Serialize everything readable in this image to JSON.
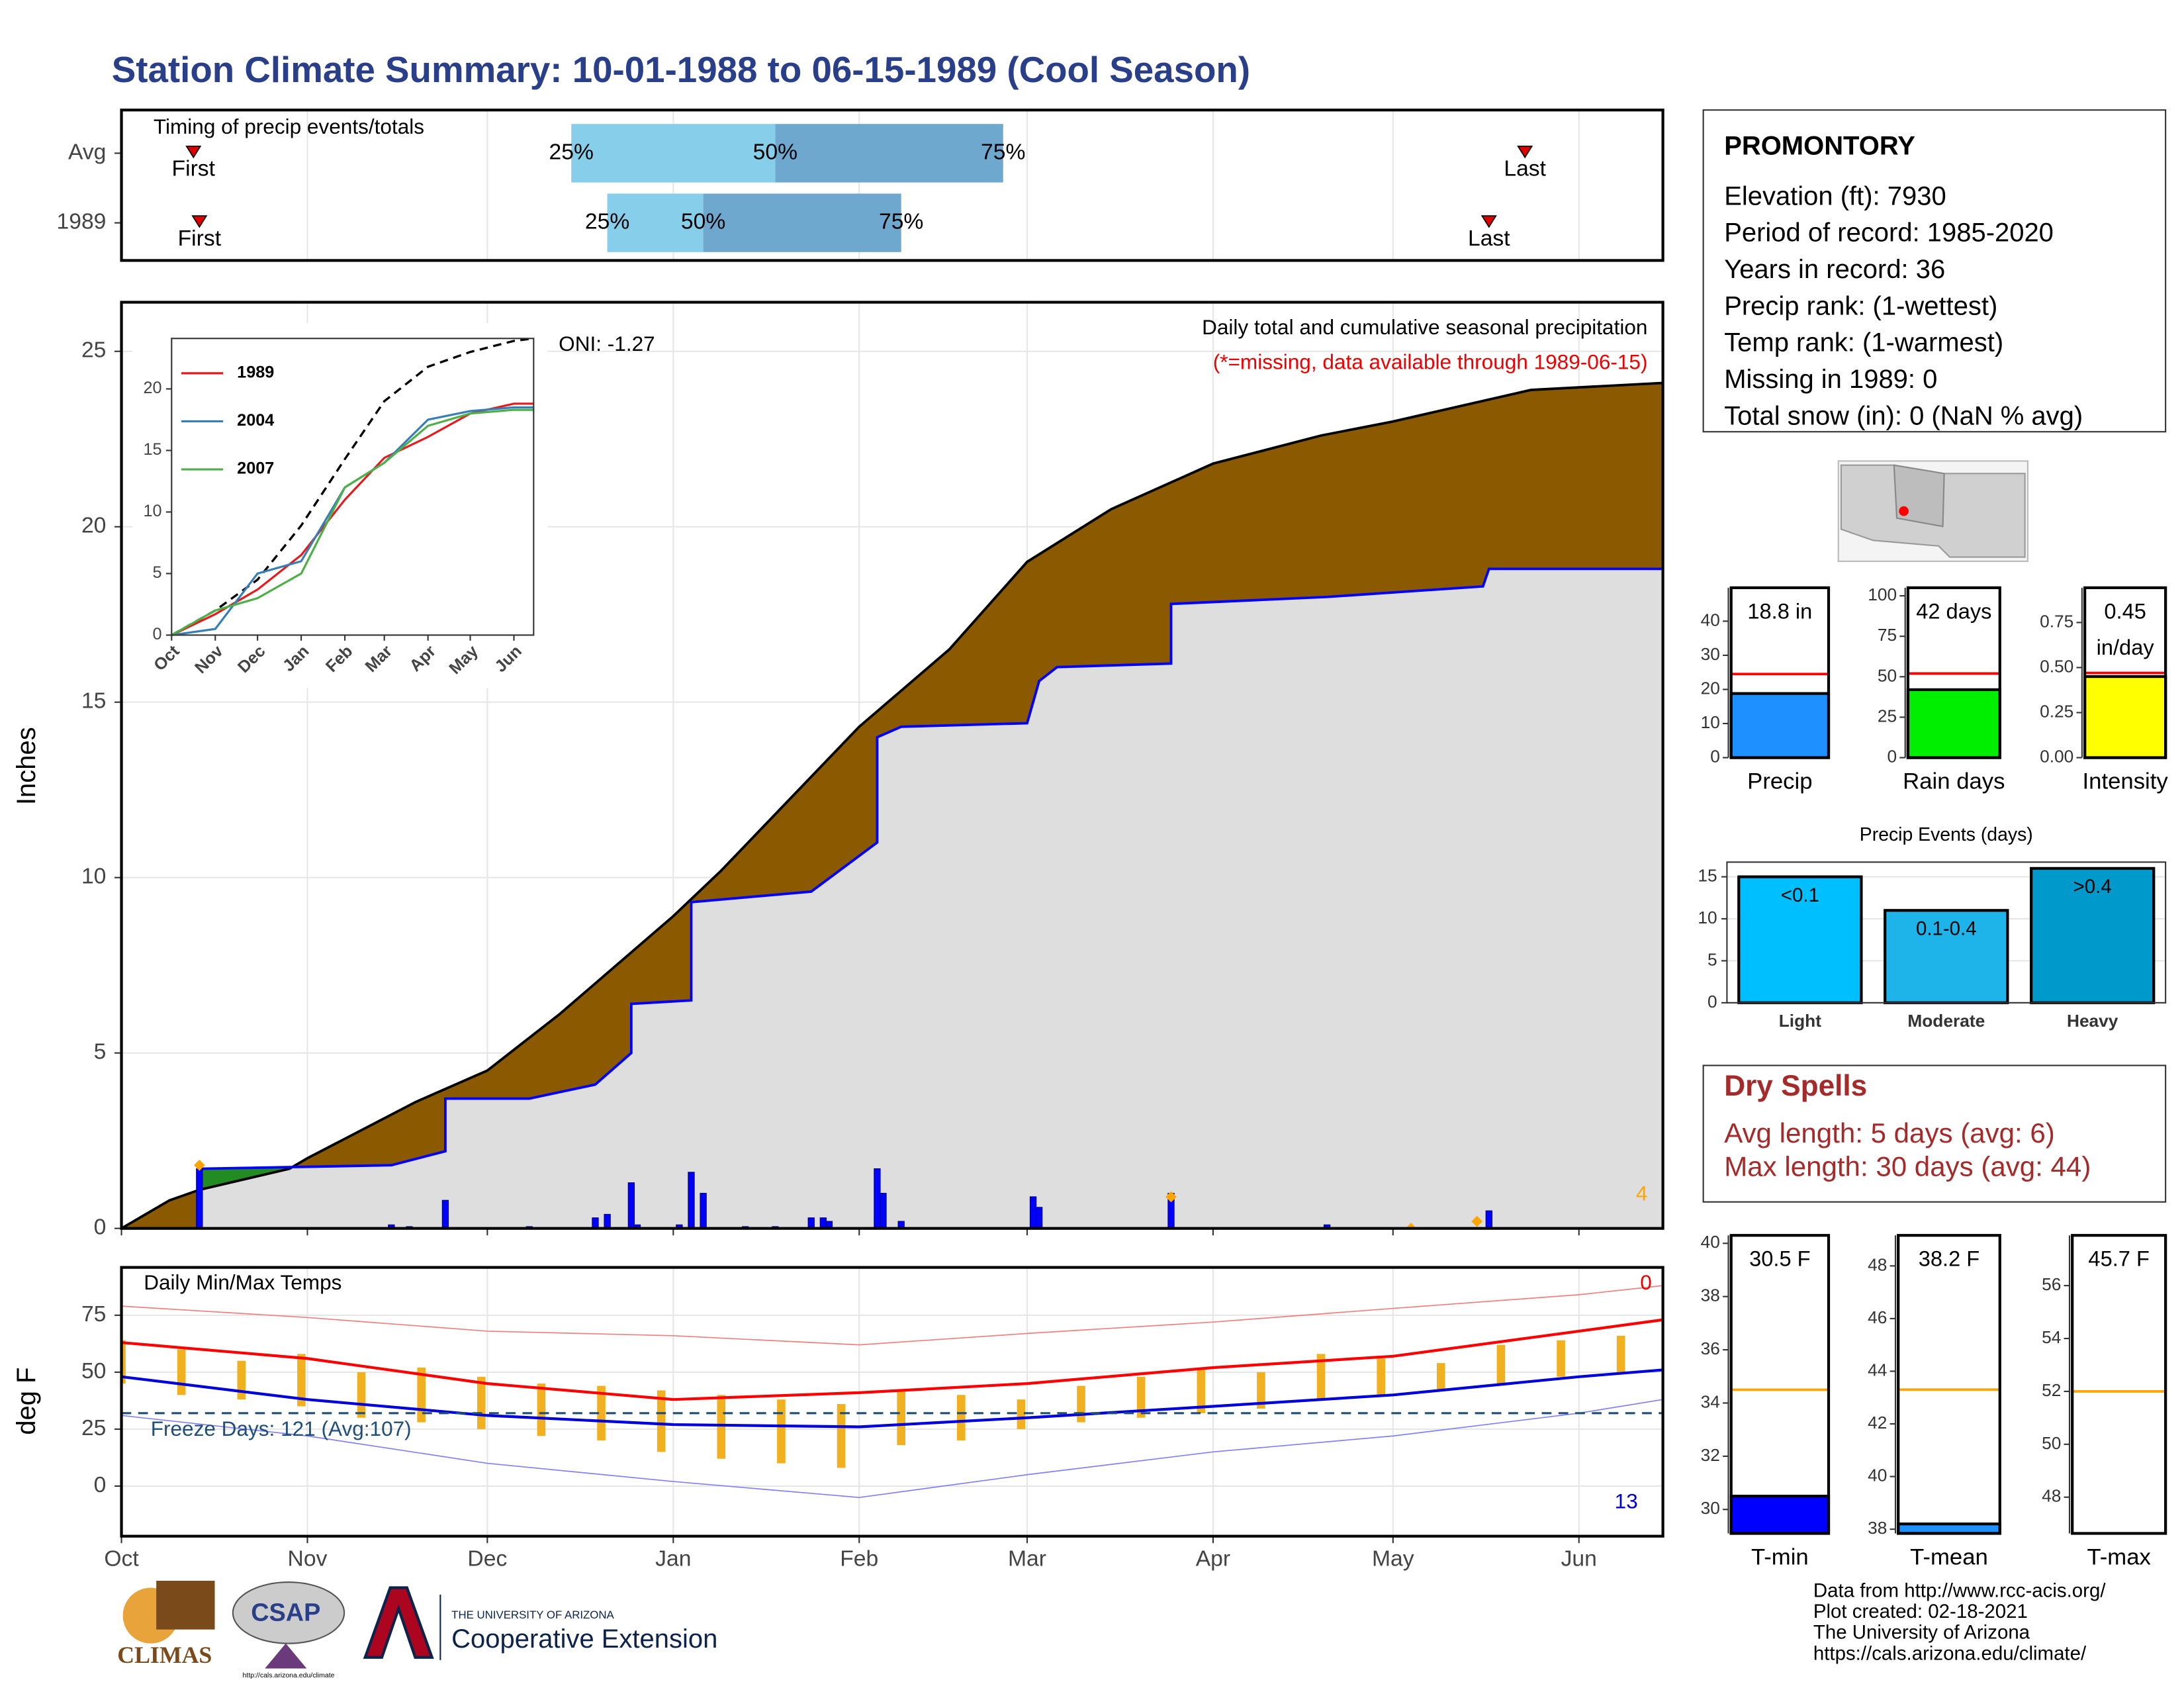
{
  "title": "Station Climate Summary: 10-01-1988 to 06-15-1989 (Cool Season)",
  "station": {
    "name": "PROMONTORY",
    "lines": [
      "Elevation (ft): 7930",
      "Period of record: 1985-2020",
      "Years in record: 36",
      "Precip rank:  (1-wettest)",
      "Temp rank:  (1-warmest)",
      "Missing in 1989: 0",
      "Total snow (in): 0 (NaN % avg)"
    ]
  },
  "dry_spells": {
    "title": "Dry Spells",
    "lines": [
      "Avg length: 5 days (avg: 6)",
      "Max length: 30 days (avg: 44)"
    ]
  },
  "footer": [
    "Data from http://www.rcc-acis.org/",
    "Plot created: 02-18-2021",
    "The University of Arizona",
    "https://cals.arizona.edu/climate/"
  ],
  "logos": {
    "climas": "CLIMAS",
    "csap": "CSAP",
    "csap_url": "http://cals.arizona.edu/climate",
    "university": "THE UNIVERSITY OF ARIZONA",
    "extension": "Cooperative Extension"
  },
  "chart_data": [
    {
      "type": "timeline",
      "title": "Timing of precip events/totals",
      "xlim": [
        0,
        257
      ],
      "xticks": [
        0,
        31,
        61,
        92,
        123,
        151,
        182,
        212,
        243
      ],
      "colors": [
        "#87ceeb",
        "#6fa8cf"
      ],
      "rows": [
        {
          "name": "Avg",
          "first": 12,
          "last": 234,
          "first_label": "First",
          "last_label": "Last",
          "quartiles": [
            75,
            109,
            147
          ],
          "quartile_labels": [
            "25%",
            "50%",
            "75%"
          ]
        },
        {
          "name": "1989",
          "first": 13,
          "last": 228,
          "first_label": "First",
          "last_label": "Last",
          "quartiles": [
            81,
            97,
            130
          ],
          "quartile_labels": [
            "25%",
            "50%",
            "75%"
          ]
        }
      ]
    },
    {
      "type": "area",
      "title": "Daily total and cumulative seasonal precipitation",
      "subtitle": "(*=missing, data available through 1989-06-15)",
      "annotation": "ONI: -1.27",
      "ylabel": "Inches",
      "missing_count": 4,
      "xlim": [
        0,
        257
      ],
      "ylim": [
        0,
        26.4
      ],
      "yticks": [
        0,
        5,
        10,
        15,
        20,
        25
      ],
      "xticks": [
        0,
        31,
        61,
        92,
        123,
        151,
        182,
        212,
        243
      ],
      "grid": true,
      "series": [
        {
          "color": "#8b5a00",
          "x": [
            0,
            8,
            13,
            28,
            31,
            49,
            61,
            73,
            92,
            100,
            123,
            138,
            151,
            165,
            182,
            200,
            212,
            235,
            257
          ],
          "values": [
            0,
            0.8,
            1.1,
            1.7,
            2.0,
            3.6,
            4.5,
            6.1,
            8.9,
            10.2,
            14.3,
            16.5,
            19.0,
            20.5,
            21.8,
            22.6,
            23.0,
            23.9,
            24.1
          ]
        },
        {
          "color": "#0000ff",
          "x": [
            0,
            13,
            13,
            45,
            54,
            54,
            68,
            79,
            85,
            85,
            95,
            95,
            115,
            126,
            126,
            130,
            151,
            153,
            156,
            175,
            175,
            201,
            227,
            228,
            257
          ],
          "values": [
            0,
            0,
            1.7,
            1.8,
            2.2,
            3.7,
            3.7,
            4.1,
            5.0,
            6.4,
            6.5,
            9.3,
            9.6,
            11.0,
            14.0,
            14.3,
            14.4,
            15.6,
            16.0,
            16.1,
            17.8,
            18.0,
            18.3,
            18.8,
            18.8
          ]
        }
      ],
      "above_color": "#228b22",
      "below_color": "#dedede",
      "bars": {
        "color": "#0000ff",
        "x": [
          13,
          45,
          48,
          54,
          68,
          79,
          81,
          85,
          86,
          93,
          95,
          97,
          104,
          109,
          115,
          117,
          118,
          126,
          127,
          130,
          152,
          153,
          175,
          201,
          228
        ],
        "values": [
          1.7,
          0.1,
          0.05,
          0.8,
          0.05,
          0.3,
          0.4,
          1.3,
          0.1,
          0.1,
          1.6,
          1.0,
          0.05,
          0.05,
          0.3,
          0.3,
          0.2,
          1.7,
          1.0,
          0.2,
          0.9,
          0.6,
          1.0,
          0.1,
          0.5
        ]
      },
      "missing": {
        "color": "#ffa500",
        "x": [
          13,
          175,
          215,
          226
        ],
        "values": [
          1.8,
          0.9,
          0,
          0.2
        ]
      }
    },
    {
      "type": "line",
      "xlim": [
        0,
        257
      ],
      "ylim": [
        0,
        24.1
      ],
      "yticks": [
        0,
        5,
        10,
        15,
        20
      ],
      "xticks": [
        {
          "value": 0,
          "label": "Oct"
        },
        {
          "value": 31,
          "label": "Nov"
        },
        {
          "value": 61,
          "label": "Dec"
        },
        {
          "value": 92,
          "label": "Jan"
        },
        {
          "value": 123,
          "label": "Feb"
        },
        {
          "value": 151,
          "label": "Mar"
        },
        {
          "value": 182,
          "label": "Apr"
        },
        {
          "value": 212,
          "label": "May"
        },
        {
          "value": 243,
          "label": "Jun"
        }
      ],
      "x": [
        0,
        31,
        61,
        92,
        123,
        151,
        182,
        212,
        243,
        257
      ],
      "avg": {
        "color": "#000000",
        "values": [
          0,
          2.0,
          4.5,
          8.9,
          14.3,
          19.0,
          21.8,
          23.0,
          23.9,
          24.1
        ]
      },
      "series": [
        {
          "name": "1989",
          "color": "#e41a1c",
          "values": [
            0,
            1.7,
            3.7,
            6.5,
            11.0,
            14.4,
            16.1,
            18.0,
            18.8,
            18.8
          ]
        },
        {
          "name": "2004",
          "color": "#377eb8",
          "values": [
            0,
            0.5,
            5.0,
            6.0,
            12.0,
            14.0,
            17.5,
            18.2,
            18.5,
            18.5
          ]
        },
        {
          "name": "2007",
          "color": "#4daf4a",
          "values": [
            0,
            2.0,
            3.0,
            5.0,
            12.0,
            14.0,
            17.0,
            18.0,
            18.3,
            18.3
          ]
        }
      ]
    },
    {
      "type": "temp",
      "title": "Daily Min/Max Temps",
      "ylabel": "deg F",
      "annotation": "Freeze Days: 121 (Avg:107)",
      "freeze": 32,
      "max_count": 0,
      "min_count": 13,
      "xlim": [
        0,
        257
      ],
      "ylim": [
        -22,
        96
      ],
      "yticks": [
        0,
        25,
        50,
        75
      ],
      "grid": true,
      "xticks": [
        {
          "value": 0,
          "label": "Oct"
        },
        {
          "value": 31,
          "label": "Nov"
        },
        {
          "value": 61,
          "label": "Dec"
        },
        {
          "value": 92,
          "label": "Jan"
        },
        {
          "value": 123,
          "label": "Feb"
        },
        {
          "value": 151,
          "label": "Mar"
        },
        {
          "value": 182,
          "label": "Apr"
        },
        {
          "value": 212,
          "label": "May"
        },
        {
          "value": 243,
          "label": "Jun"
        }
      ],
      "x": [
        0,
        31,
        61,
        92,
        123,
        151,
        182,
        212,
        243,
        257
      ],
      "series": [
        {
          "color": "#f08080",
          "width": 0.8,
          "values": [
            79,
            74,
            68,
            66,
            62,
            67,
            72,
            78,
            84,
            88
          ]
        },
        {
          "color": "#ff0000",
          "width": 2,
          "values": [
            63,
            56,
            45,
            38,
            41,
            45,
            52,
            57,
            68,
            73
          ]
        },
        {
          "color": "#0000dd",
          "width": 2,
          "values": [
            48,
            38,
            31,
            27,
            26,
            30,
            35,
            40,
            48,
            51
          ]
        },
        {
          "color": "#8080ff",
          "width": 0.8,
          "values": [
            31,
            22,
            10,
            2,
            -5,
            5,
            15,
            22,
            32,
            38
          ]
        }
      ],
      "bars": {
        "color": "#f0b020",
        "x": [
          0,
          10,
          20,
          30,
          40,
          50,
          60,
          70,
          80,
          90,
          100,
          110,
          120,
          130,
          140,
          150,
          160,
          170,
          180,
          190,
          200,
          210,
          220,
          230,
          240,
          250
        ],
        "high": [
          64,
          60,
          55,
          58,
          50,
          52,
          48,
          45,
          44,
          42,
          40,
          38,
          36,
          42,
          40,
          38,
          44,
          48,
          52,
          50,
          58,
          56,
          54,
          62,
          64,
          66
        ],
        "low": [
          45,
          40,
          38,
          35,
          30,
          28,
          25,
          22,
          20,
          15,
          12,
          10,
          8,
          18,
          20,
          25,
          28,
          30,
          32,
          34,
          38,
          40,
          42,
          45,
          48,
          50
        ]
      },
      "freeze_color": "#1f4e79"
    },
    {
      "type": "gauge",
      "label": "Precip",
      "value": 18.8,
      "value_label": "18.8 in",
      "avg": 24.5,
      "color": "#1e90ff",
      "avg_color": "#ff0000",
      "ylim": [
        0,
        49.8
      ],
      "yticks": [
        0,
        10,
        20,
        30,
        40
      ]
    },
    {
      "type": "gauge",
      "label": "Rain days",
      "value": 42,
      "value_label": "42 days",
      "avg": 52,
      "color": "#00ee00",
      "avg_color": "#ff0000",
      "ylim": [
        0,
        105
      ],
      "yticks": [
        0,
        25,
        50,
        75,
        100
      ]
    },
    {
      "type": "gauge",
      "label": "Intensity",
      "value": 0.45,
      "value_label": "0.45",
      "unit": "in/day",
      "avg": 0.47,
      "color": "#ffff00",
      "avg_color": "#ff0000",
      "ylim": [
        0,
        0.943
      ],
      "yticks": [
        {
          "value": 0,
          "label": "0.00"
        },
        {
          "value": 0.25,
          "label": "0.25"
        },
        {
          "value": 0.5,
          "label": "0.50"
        },
        {
          "value": 0.75,
          "label": "0.75"
        }
      ]
    },
    {
      "type": "bar",
      "title": "Precip Events (days)",
      "categories": [
        "Light",
        "Moderate",
        "Heavy"
      ],
      "class_labels": [
        "<0.1",
        "0.1-0.4",
        ">0.4"
      ],
      "values": [
        15,
        11,
        16
      ],
      "colors": [
        "#00bfff",
        "#1eb4ea",
        "#0099cc"
      ],
      "ylim": [
        0,
        16.75
      ],
      "yticks": [
        0,
        5,
        10,
        15
      ],
      "grid": true
    },
    {
      "type": "gauge",
      "label": "T-min",
      "value": 30.5,
      "value_label": "30.5 F",
      "avg": 34.5,
      "color": "#0000ff",
      "avg_color": "#ffa500",
      "ylim": [
        29.1,
        40.3
      ],
      "yticks": [
        30,
        32,
        34,
        36,
        38,
        40
      ]
    },
    {
      "type": "gauge",
      "label": "T-mean",
      "value": 38.2,
      "value_label": "38.2 F",
      "avg": 43.3,
      "color": "#1e90ff",
      "avg_color": "#ffa500",
      "ylim": [
        37.84,
        49.16
      ],
      "yticks": [
        38,
        40,
        42,
        44,
        46,
        48
      ]
    },
    {
      "type": "gauge",
      "label": "T-max",
      "value": 45.7,
      "value_label": "45.7 F",
      "avg": 52,
      "color": "#ff4500",
      "avg_color": "#ffa500",
      "ylim": [
        46.63,
        57.9
      ],
      "yticks": [
        48,
        50,
        52,
        54,
        56
      ]
    }
  ]
}
